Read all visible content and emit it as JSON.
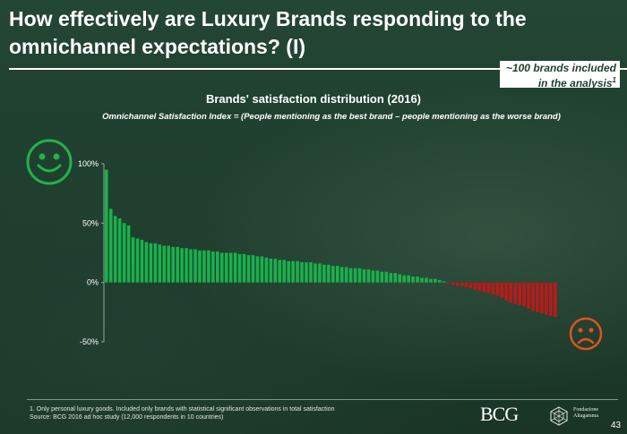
{
  "title": "How  effectively are Luxury Brands responding to the omnichannel expectations? (I)",
  "callout": {
    "text": "~100 brands included in the analysis",
    "sup": "1"
  },
  "chart_data": {
    "type": "bar",
    "title": "Brands' satisfaction distribution (2016)",
    "subtitle": "Omnichannel Satisfaction Index = (People mentioning as the best brand – people mentioning as the worse brand)",
    "ylabel": "",
    "xlabel": "",
    "ylim": [
      -50,
      100
    ],
    "yticks": [
      100,
      50,
      0,
      -50
    ],
    "ytick_labels": [
      "100%",
      "50%",
      "0%",
      "-50%"
    ],
    "positive_color": "#17b24b",
    "negative_color": "#c01818",
    "values": [
      95,
      62,
      56,
      54,
      50,
      48,
      38,
      37,
      36,
      34,
      33,
      33,
      32,
      31,
      31,
      30,
      30,
      29,
      29,
      28,
      28,
      27,
      27,
      27,
      26,
      26,
      25,
      25,
      25,
      25,
      24,
      24,
      23,
      23,
      22,
      22,
      21,
      20,
      20,
      19,
      19,
      18,
      18,
      18,
      17,
      17,
      17,
      16,
      16,
      15,
      15,
      14,
      14,
      13,
      13,
      12,
      12,
      12,
      11,
      11,
      10,
      10,
      9,
      9,
      8,
      8,
      7,
      6,
      6,
      5,
      5,
      4,
      4,
      3,
      3,
      2,
      1,
      -1,
      -2,
      -3,
      -3,
      -4,
      -5,
      -6,
      -7,
      -8,
      -9,
      -10,
      -11,
      -13,
      -15,
      -17,
      -18,
      -19,
      -20,
      -22,
      -24,
      -25,
      -26,
      -27,
      -28,
      -29
    ]
  },
  "icons": {
    "happy": "smiley-happy-icon",
    "sad": "smiley-sad-icon",
    "happy_color": "#22b24c",
    "sad_color": "#e0531f"
  },
  "footnote": {
    "line1": "1.  Only personal luxury goods. Included only brands with statistical significant observations in total satisfaction",
    "line2": "Source: BCG 2016 ad hoc study (12,000 respondents in 10 countries)"
  },
  "logos": {
    "bcg": "BCG",
    "partner_line1": "Fondazione",
    "partner_line2": "Altagamma"
  },
  "page_number": "43"
}
